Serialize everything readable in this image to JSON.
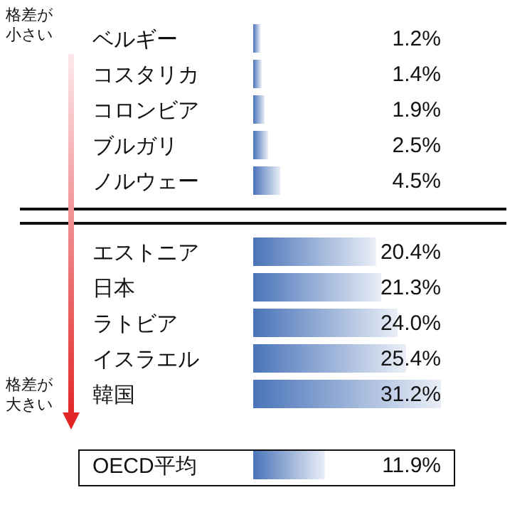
{
  "chart_data": {
    "type": "bar",
    "orientation": "horizontal",
    "categories": [
      "ベルギー",
      "コスタリカ",
      "コロンビア",
      "ブルガリ",
      "ノルウェー",
      "エストニア",
      "日本",
      "ラトビア",
      "イスラエル",
      "韓国",
      "OECD平均"
    ],
    "values": [
      1.2,
      1.4,
      1.9,
      2.5,
      4.5,
      20.4,
      21.3,
      24.0,
      25.4,
      31.2,
      11.9
    ],
    "value_labels": [
      "1.2%",
      "1.4%",
      "1.9%",
      "2.5%",
      "4.5%",
      "20.4%",
      "21.3%",
      "24.0%",
      "25.4%",
      "31.2%",
      "11.9%"
    ],
    "color": "#4a74b9",
    "annotations": [
      "格差が小さい",
      "格差が大きい"
    ],
    "grid": false,
    "legend": false
  }
}
